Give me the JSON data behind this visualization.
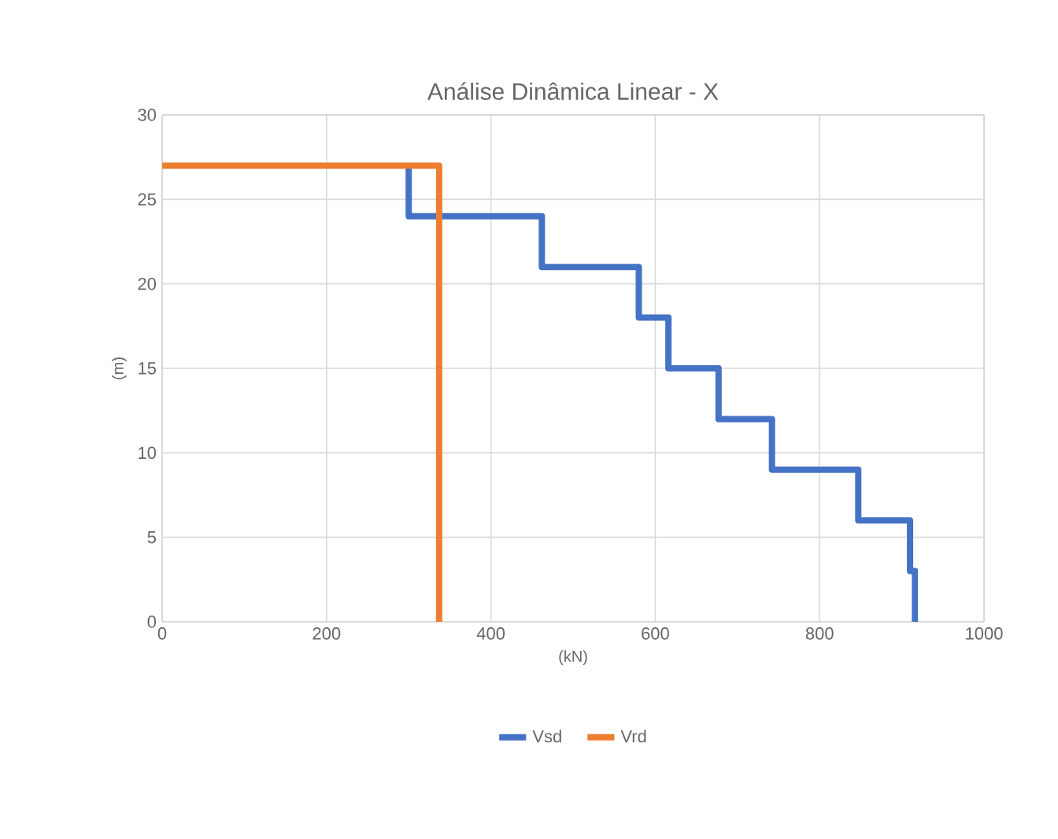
{
  "chart_data": {
    "type": "line",
    "title": "Análise Dinâmica Linear - X",
    "xlabel": "(kN)",
    "ylabel": "(m)",
    "series": [
      {
        "name": "Vsd",
        "color": "#4472c4",
        "x": [
          300,
          300,
          462,
          462,
          580,
          580,
          616,
          616,
          677,
          677,
          742,
          742,
          847,
          847,
          910,
          910,
          916,
          916
        ],
        "values": [
          27,
          24,
          24,
          21,
          21,
          18,
          18,
          15,
          15,
          12,
          12,
          9,
          9,
          6,
          6,
          3,
          3,
          0
        ]
      },
      {
        "name": "Vrd",
        "color": "#ed7d31",
        "x": [
          0,
          337,
          337
        ],
        "values": [
          27,
          27,
          0
        ]
      }
    ],
    "xlim": [
      0,
      1000
    ],
    "xticks": [
      0,
      200,
      400,
      600,
      800,
      1000
    ],
    "ylim": [
      0,
      30
    ],
    "yticks": [
      0,
      5,
      10,
      15,
      20,
      25,
      30
    ],
    "grid": true,
    "legend": "bottom",
    "marker": "none",
    "line_style": "solid"
  }
}
